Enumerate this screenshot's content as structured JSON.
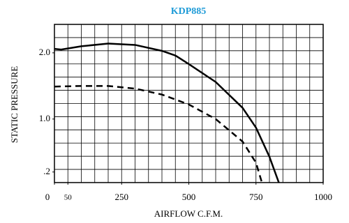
{
  "chart_data": {
    "type": "line",
    "title": "KDP885",
    "xlabel": "AIRFLOW C.F.M.",
    "ylabel": "STATIC PRESSURE",
    "xlim": [
      0,
      1000
    ],
    "ylim": [
      0.04,
      2.43
    ],
    "xticks": [
      0,
      50,
      250,
      500,
      750,
      1000
    ],
    "yticks": [
      {
        "value": 0.2,
        "label": ".2"
      },
      {
        "value": 1,
        "label": "1.0"
      },
      {
        "value": 2,
        "label": "2.0"
      }
    ],
    "grid": true,
    "title_color": "#1e9bd7",
    "series": [
      {
        "color": "#000000",
        "dash": false,
        "x": [
          0,
          25,
          100,
          200,
          300,
          400,
          450,
          500,
          600,
          700,
          750,
          800,
          835
        ],
        "values": [
          2.06,
          2.05,
          2.1,
          2.14,
          2.12,
          2.03,
          1.96,
          1.83,
          1.56,
          1.17,
          0.87,
          0.43,
          0.04
        ]
      },
      {
        "color": "#000000",
        "dash": true,
        "x": [
          0,
          100,
          200,
          300,
          400,
          500,
          600,
          700,
          750,
          772
        ],
        "values": [
          1.49,
          1.5,
          1.5,
          1.46,
          1.37,
          1.22,
          1.0,
          0.66,
          0.34,
          0.04
        ]
      }
    ]
  }
}
